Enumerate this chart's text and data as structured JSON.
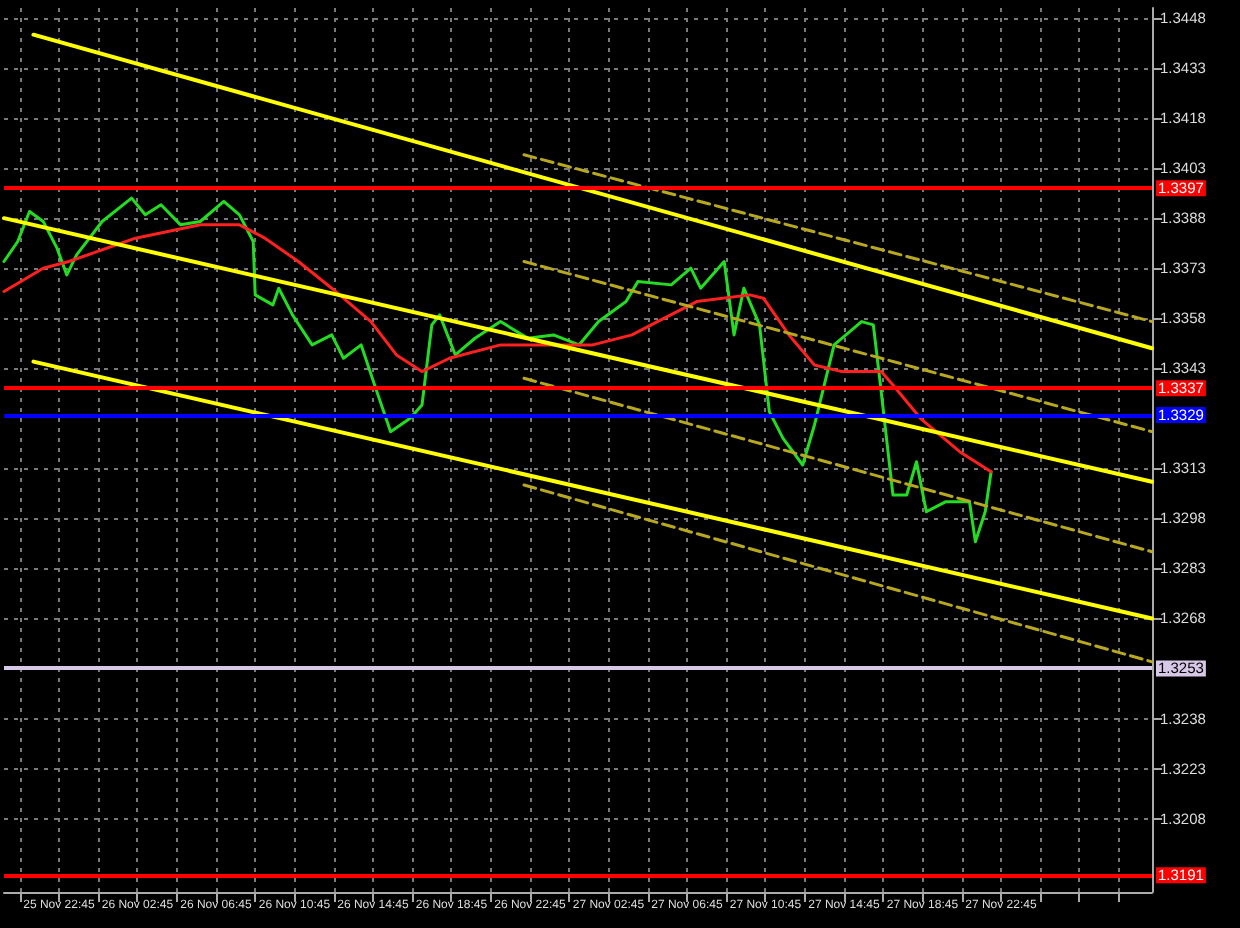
{
  "chart_data": {
    "type": "line",
    "xlim": [
      "--11-25T19:57",
      "--11-28T06:27"
    ],
    "ylim": [
      1.3186,
      1.3451
    ],
    "xticks": [
      {
        "value": "--11-25T20:45",
        "label": null
      },
      {
        "value": "--11-25T22:45",
        "label": "25 Nov 22:45"
      },
      {
        "value": "--11-26T00:45",
        "label": null
      },
      {
        "value": "--11-26T02:45",
        "label": "26 Nov 02:45"
      },
      {
        "value": "--11-26T04:45",
        "label": null
      },
      {
        "value": "--11-26T06:45",
        "label": "26 Nov 06:45"
      },
      {
        "value": "--11-26T08:45",
        "label": null
      },
      {
        "value": "--11-26T10:45",
        "label": "26 Nov 10:45"
      },
      {
        "value": "--11-26T12:45",
        "label": null
      },
      {
        "value": "--11-26T14:45",
        "label": "26 Nov 14:45"
      },
      {
        "value": "--11-26T16:45",
        "label": null
      },
      {
        "value": "--11-26T18:45",
        "label": "26 Nov 18:45"
      },
      {
        "value": "--11-26T20:45",
        "label": null
      },
      {
        "value": "--11-26T22:45",
        "label": "26 Nov 22:45"
      },
      {
        "value": "--11-27T00:45",
        "label": null
      },
      {
        "value": "--11-27T02:45",
        "label": "27 Nov 02:45"
      },
      {
        "value": "--11-27T04:45",
        "label": null
      },
      {
        "value": "--11-27T06:45",
        "label": "27 Nov 06:45"
      },
      {
        "value": "--11-27T08:45",
        "label": null
      },
      {
        "value": "--11-27T10:45",
        "label": "27 Nov 10:45"
      },
      {
        "value": "--11-27T12:45",
        "label": null
      },
      {
        "value": "--11-27T14:45",
        "label": "27 Nov 14:45"
      },
      {
        "value": "--11-27T16:45",
        "label": null
      },
      {
        "value": "--11-27T18:45",
        "label": "27 Nov 18:45"
      },
      {
        "value": "--11-27T20:45",
        "label": null
      },
      {
        "value": "--11-27T22:45",
        "label": "27 Nov 22:45"
      },
      {
        "value": "--11-28T00:45",
        "label": null
      },
      {
        "value": "--11-28T02:45",
        "label": null
      },
      {
        "value": "--11-28T04:45",
        "label": null
      }
    ],
    "yticks": [
      1.3208,
      1.3223,
      1.3238,
      1.3268,
      1.3283,
      1.3298,
      1.3313,
      1.3343,
      1.3358,
      1.3373,
      1.3388,
      1.3403,
      1.3418,
      1.3433,
      1.3448
    ],
    "grid": true,
    "marker": "none",
    "line_style": "solid",
    "series": [
      {
        "color": "#22dd22",
        "x": [
          "--11-25T19:57",
          "--11-25T20:39",
          "--11-25T21:15",
          "--11-25T21:57",
          "--11-25T22:39",
          "--11-25T23:09",
          "--11-25T23:39",
          "--11-26T00:57",
          "--11-26T02:27",
          "--11-26T03:09",
          "--11-26T03:57",
          "--11-26T04:57",
          "--11-26T05:57",
          "--11-26T07:09",
          "--11-26T07:57",
          "--11-26T08:39",
          "--11-26T08:45",
          "--11-26T09:39",
          "--11-26T09:57",
          "--11-26T10:39",
          "--11-26T11:39",
          "--11-26T12:39",
          "--11-26T13:15",
          "--11-26T14:09",
          "--11-26T14:57",
          "--11-26T15:39",
          "--11-26T16:39",
          "--11-26T17:15",
          "--11-26T17:45",
          "--11-26T18:09",
          "--11-26T18:57",
          "--11-26T19:57",
          "--11-26T21:15",
          "--11-26T22:39",
          "--11-26T23:57",
          "--11-27T01:15",
          "--11-27T02:15",
          "--11-27T03:39",
          "--11-27T04:15",
          "--11-27T05:57",
          "--11-27T06:57",
          "--11-27T07:27",
          "--11-27T08:39",
          "--11-27T09:09",
          "--11-27T09:39",
          "--11-27T10:27",
          "--11-27T10:57",
          "--11-27T11:39",
          "--11-27T12:39",
          "--11-27T13:15",
          "--11-27T14:15",
          "--11-27T15:39",
          "--11-27T16:15",
          "--11-27T16:39",
          "--11-27T17:15",
          "--11-27T17:57",
          "--11-27T18:27",
          "--11-27T18:57",
          "--11-27T19:57",
          "--11-27T21:09",
          "--11-27T21:27",
          "--11-27T21:57",
          "--11-27T22:15"
        ],
        "values": [
          1.3375,
          1.3381,
          1.339,
          1.3387,
          1.3379,
          1.3371,
          1.3377,
          1.3387,
          1.3394,
          1.3389,
          1.3392,
          1.3386,
          1.3387,
          1.3393,
          1.3389,
          1.3381,
          1.3365,
          1.3362,
          1.3367,
          1.3359,
          1.335,
          1.3353,
          1.3346,
          1.335,
          1.3336,
          1.3324,
          1.3328,
          1.3332,
          1.3356,
          1.3359,
          1.3347,
          1.3352,
          1.3357,
          1.3352,
          1.3353,
          1.335,
          1.3357,
          1.3363,
          1.3369,
          1.3368,
          1.3373,
          1.3367,
          1.3375,
          1.3353,
          1.3367,
          1.3356,
          1.333,
          1.3322,
          1.3314,
          1.3326,
          1.335,
          1.3357,
          1.3356,
          1.3336,
          1.3305,
          1.3305,
          1.3315,
          1.33,
          1.3303,
          1.3303,
          1.3291,
          1.33,
          1.3312
        ]
      },
      {
        "color": "#ff2020",
        "x": [
          "--11-25T19:57",
          "--11-25T21:57",
          "--11-25T23:15",
          "--11-26T02:39",
          "--11-26T05:57",
          "--11-26T07:57",
          "--11-26T09:15",
          "--11-26T10:57",
          "--11-26T12:39",
          "--11-26T14:39",
          "--11-26T15:57",
          "--11-26T17:15",
          "--11-26T18:39",
          "--11-26T21:15",
          "--11-26T23:57",
          "--11-27T01:57",
          "--11-27T03:57",
          "--11-27T05:15",
          "--11-27T07:15",
          "--11-27T09:57",
          "--11-27T10:39",
          "--11-27T11:57",
          "--11-27T13:15",
          "--11-27T14:39",
          "--11-27T16:39",
          "--11-27T17:15",
          "--11-27T18:39",
          "--11-27T20:39",
          "--11-27T22:15"
        ],
        "values": [
          1.3366,
          1.3373,
          1.3375,
          1.3382,
          1.3386,
          1.3386,
          1.3382,
          1.3375,
          1.3367,
          1.3357,
          1.3347,
          1.3342,
          1.3346,
          1.335,
          1.335,
          1.335,
          1.3353,
          1.3357,
          1.3363,
          1.3365,
          1.3364,
          1.3353,
          1.3344,
          1.3342,
          1.3342,
          1.3338,
          1.3328,
          1.3318,
          1.3312
        ]
      },
      {
        "color": "#ffff00",
        "x": [
          "--11-25T21:27",
          "--11-28T06:27"
        ],
        "values": [
          1.3443,
          1.3349
        ]
      },
      {
        "color": "#ffff00",
        "x": [
          "--11-25T19:57",
          "--11-28T06:27"
        ],
        "values": [
          1.3388,
          1.3309
        ]
      },
      {
        "color": "#ffff00",
        "x": [
          "--11-25T21:27",
          "--11-28T06:27"
        ],
        "values": [
          1.3345,
          1.3268
        ]
      },
      {
        "color": "#b8a820",
        "line_style": "dashed",
        "x": [
          "--11-26T22:27",
          "--11-28T06:27"
        ],
        "values": [
          1.3407,
          1.3357
        ]
      },
      {
        "color": "#b8a820",
        "line_style": "dashed",
        "x": [
          "--11-26T22:27",
          "--11-28T06:27"
        ],
        "values": [
          1.3375,
          1.3324
        ]
      },
      {
        "color": "#b8a820",
        "line_style": "dashed",
        "x": [
          "--11-26T22:27",
          "--11-28T06:27"
        ],
        "values": [
          1.334,
          1.3288
        ]
      },
      {
        "color": "#b8a820",
        "line_style": "dashed",
        "x": [
          "--11-26T22:27",
          "--11-28T06:27"
        ],
        "values": [
          1.3308,
          1.3255
        ]
      }
    ],
    "ref_lines": [
      {
        "axis": "y",
        "value": 1.3397,
        "label": "1.3397",
        "color": "#ff0000"
      },
      {
        "axis": "y",
        "value": 1.3337,
        "label": "1.3337",
        "color": "#ff0000"
      },
      {
        "axis": "y",
        "value": 1.3329,
        "label": "1.3329",
        "color": "#0000ff"
      },
      {
        "axis": "y",
        "value": 1.3253,
        "label": "1.3253",
        "color": "#d8c8e8"
      },
      {
        "axis": "y",
        "value": 1.3191,
        "label": "1.3191",
        "color": "#ff0000"
      }
    ]
  }
}
